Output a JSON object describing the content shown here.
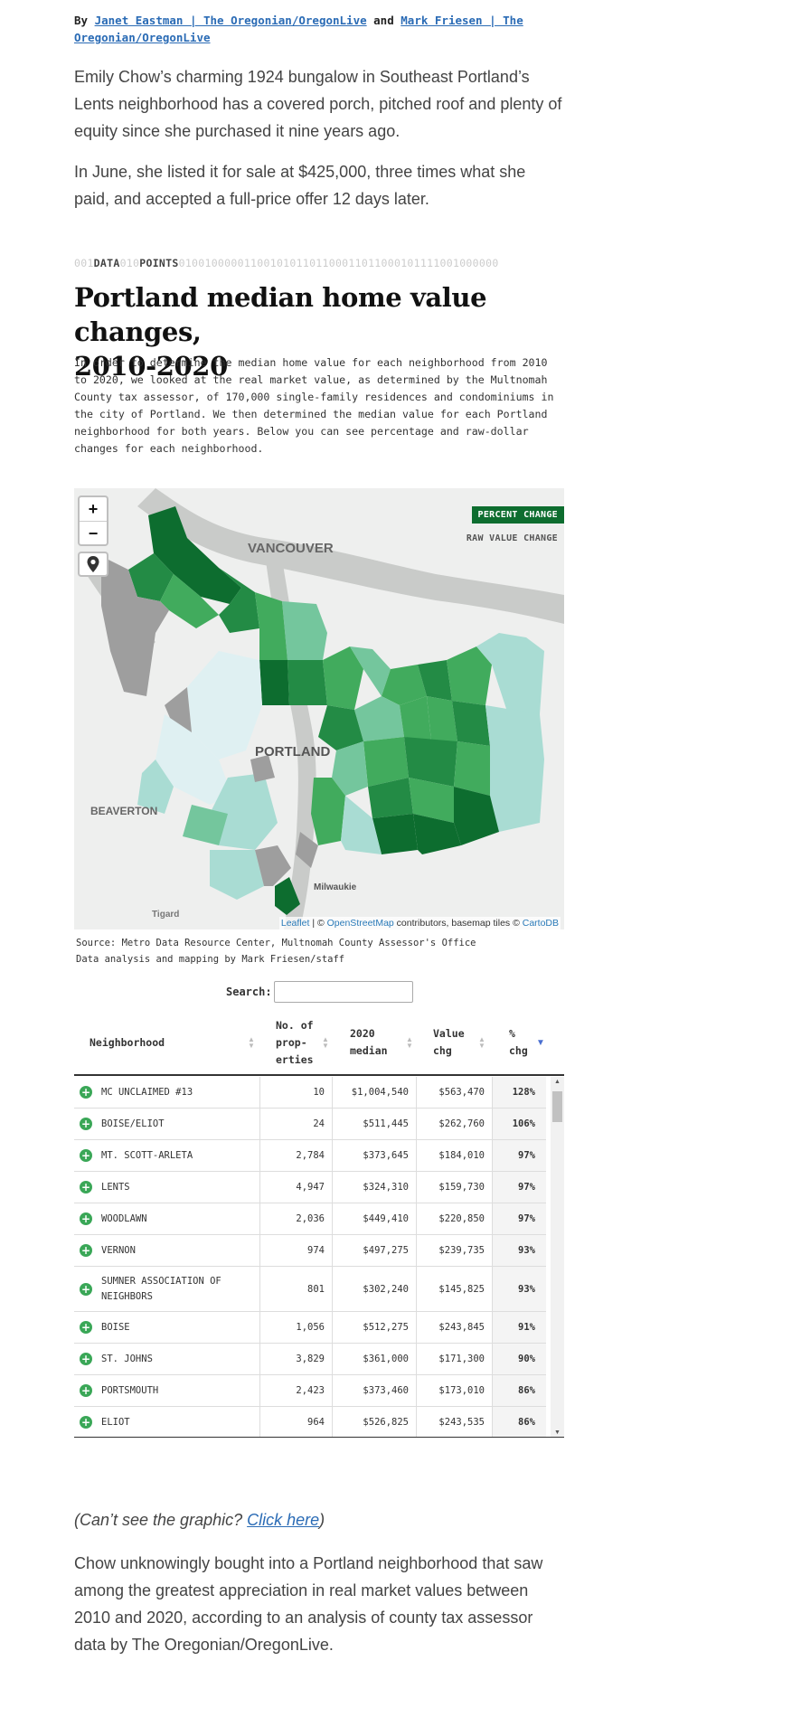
{
  "byline": {
    "prefix": "By",
    "author1": "Janet Eastman | The Oregonian/OregonLive",
    "conj": "and",
    "author2": "Mark Friesen | The Oregonian/OregonLive"
  },
  "intro": [
    "Emily Chow’s charming 1924 bungalow in Southeast Portland’s Lents neighborhood has a covered porch, pitched roof and plenty of equity since she purchased it nine years ago.",
    "In June, she listed it for sale at $425,000, three times what she paid, and accepted a full-price offer 12 days later."
  ],
  "kicker": {
    "bits1": "001",
    "word1": "DATA",
    "bits2": "010",
    "word2": "POINTS",
    "bits3": "0100100000110010101101100011011000101111001000000"
  },
  "graphic": {
    "title_line1": "Portland median home value changes,",
    "title_line2": "2010-2020",
    "description": "In order to determine the median home value for each neighborhood from 2010 to 2020, we looked at the real market value, as determined by the Multnomah County tax assessor, of 170,000 single-family residences and condominiums in the city of Portland. We then determined the median value for each Portland neighborhood for both years. Below you can see percentage and raw-dollar changes for each neighborhood.",
    "map": {
      "zoom_in": "+",
      "zoom_out": "−",
      "locate_icon": "map-pin-icon",
      "toggle_active": "PERCENT CHANGE",
      "toggle_inactive": "RAW VALUE CHANGE",
      "label_vancouver": "VANCOUVER",
      "label_portland": "PORTLAND",
      "label_beaverton": "BEAVERTON",
      "label_milwaukie": "Milwaukie",
      "label_tigard": "Tigard",
      "attr_leaflet": "Leaflet",
      "attr_sep": " | © ",
      "attr_osm": "OpenStreetMap",
      "attr_mid": " contributors, basemap tiles © ",
      "attr_carto": "CartoDB",
      "colors": {
        "darkest": "#0d6d2f",
        "dark": "#238b45",
        "medium": "#41ab5d",
        "light": "#74c69d",
        "lighter": "#a9dcd3",
        "lightest": "#dff0f2",
        "none": "#9e9e9e",
        "water": "#c9cbc9"
      }
    },
    "source_line1": "Source: Metro Data Resource Center, Multnomah County Assessor's Office",
    "source_line2": "Data analysis and mapping by Mark Friesen/staff",
    "search_label": "Search:",
    "search_value": "",
    "headers": {
      "neighborhood": "Neighborhood",
      "props_l1": "No. of",
      "props_l2": "prop-",
      "props_l3": "erties",
      "median_l1": "2020",
      "median_l2": "median",
      "value_l1": "Value",
      "value_l2": "chg",
      "pct_l1": "%",
      "pct_l2": "chg"
    },
    "rows": [
      {
        "name": "MC UNCLAIMED #13",
        "props": "10",
        "median": "$1,004,540",
        "chg": "$563,470",
        "pct": "128%"
      },
      {
        "name": "BOISE/ELIOT",
        "props": "24",
        "median": "$511,445",
        "chg": "$262,760",
        "pct": "106%"
      },
      {
        "name": "MT. SCOTT-ARLETA",
        "props": "2,784",
        "median": "$373,645",
        "chg": "$184,010",
        "pct": "97%"
      },
      {
        "name": "LENTS",
        "props": "4,947",
        "median": "$324,310",
        "chg": "$159,730",
        "pct": "97%"
      },
      {
        "name": "WOODLAWN",
        "props": "2,036",
        "median": "$449,410",
        "chg": "$220,850",
        "pct": "97%"
      },
      {
        "name": "VERNON",
        "props": "974",
        "median": "$497,275",
        "chg": "$239,735",
        "pct": "93%"
      },
      {
        "name": "SUMNER ASSOCIATION OF NEIGHBORS",
        "props": "801",
        "median": "$302,240",
        "chg": "$145,825",
        "pct": "93%"
      },
      {
        "name": "BOISE",
        "props": "1,056",
        "median": "$512,275",
        "chg": "$243,845",
        "pct": "91%"
      },
      {
        "name": "ST. JOHNS",
        "props": "3,829",
        "median": "$361,000",
        "chg": "$171,300",
        "pct": "90%"
      },
      {
        "name": "PORTSMOUTH",
        "props": "2,423",
        "median": "$373,460",
        "chg": "$173,010",
        "pct": "86%"
      },
      {
        "name": "ELIOT",
        "props": "964",
        "median": "$526,825",
        "chg": "$243,535",
        "pct": "86%"
      }
    ]
  },
  "cant_see": {
    "open": "(Can’t see the graphic? ",
    "link": "Click here",
    "close": ")"
  },
  "body": [
    "Chow unknowingly bought into a Portland neighborhood that saw among the greatest appreciation in real market values between 2010 and 2020, according to an analysis of county tax assessor data by The Oregonian/OregonLive."
  ]
}
